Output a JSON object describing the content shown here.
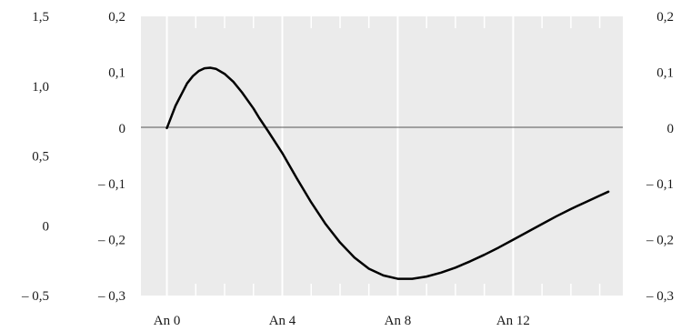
{
  "chart_data": {
    "type": "line",
    "title": "",
    "xlabel": "",
    "ylabel": "",
    "grid": true,
    "x_ticks": [
      {
        "x": 0,
        "label": "An 0"
      },
      {
        "x": 4,
        "label": "An 4"
      },
      {
        "x": 8,
        "label": "An 8"
      },
      {
        "x": 12,
        "label": "An 12"
      }
    ],
    "xlim": [
      -0.9,
      15.8
    ],
    "y_left_outer": {
      "range": [
        -0.5,
        1.5
      ],
      "ticks": [
        {
          "v": 1.5,
          "label": "1,5"
        },
        {
          "v": 1.0,
          "label": "1,0"
        },
        {
          "v": 0.5,
          "label": "0,5"
        },
        {
          "v": 0.0,
          "label": "0"
        },
        {
          "v": -0.5,
          "label": "– 0,5"
        }
      ]
    },
    "y_inner": {
      "range": [
        -0.3,
        0.2
      ],
      "ticks": [
        {
          "v": 0.2,
          "label": "0,2"
        },
        {
          "v": 0.1,
          "label": "0,1"
        },
        {
          "v": 0.0,
          "label": "0"
        },
        {
          "v": -0.1,
          "label": "– 0,1"
        },
        {
          "v": -0.2,
          "label": "– 0,2"
        },
        {
          "v": -0.3,
          "label": "– 0,3"
        }
      ]
    },
    "zero_line": 0,
    "series": [
      {
        "x": [
          0,
          0.15,
          0.3,
          0.5,
          0.7,
          0.9,
          1.1,
          1.3,
          1.5,
          1.7,
          2.0,
          2.3,
          2.6,
          3.0,
          3.2,
          3.5,
          4.0,
          4.5,
          5.0,
          5.5,
          6.0,
          6.5,
          7.0,
          7.5,
          8.0,
          8.5,
          9.0,
          9.5,
          10.0,
          10.5,
          11.0,
          11.5,
          12.0,
          12.5,
          13.0,
          13.5,
          14.0,
          14.5,
          15.0,
          15.3
        ],
        "y": [
          0.0,
          0.02,
          0.04,
          0.06,
          0.08,
          0.093,
          0.102,
          0.107,
          0.108,
          0.106,
          0.097,
          0.083,
          0.064,
          0.035,
          0.018,
          -0.005,
          -0.045,
          -0.09,
          -0.133,
          -0.172,
          -0.205,
          -0.232,
          -0.252,
          -0.264,
          -0.27,
          -0.27,
          -0.266,
          -0.259,
          -0.25,
          -0.239,
          -0.227,
          -0.214,
          -0.2,
          -0.186,
          -0.172,
          -0.158,
          -0.145,
          -0.133,
          -0.121,
          -0.114
        ]
      }
    ]
  }
}
